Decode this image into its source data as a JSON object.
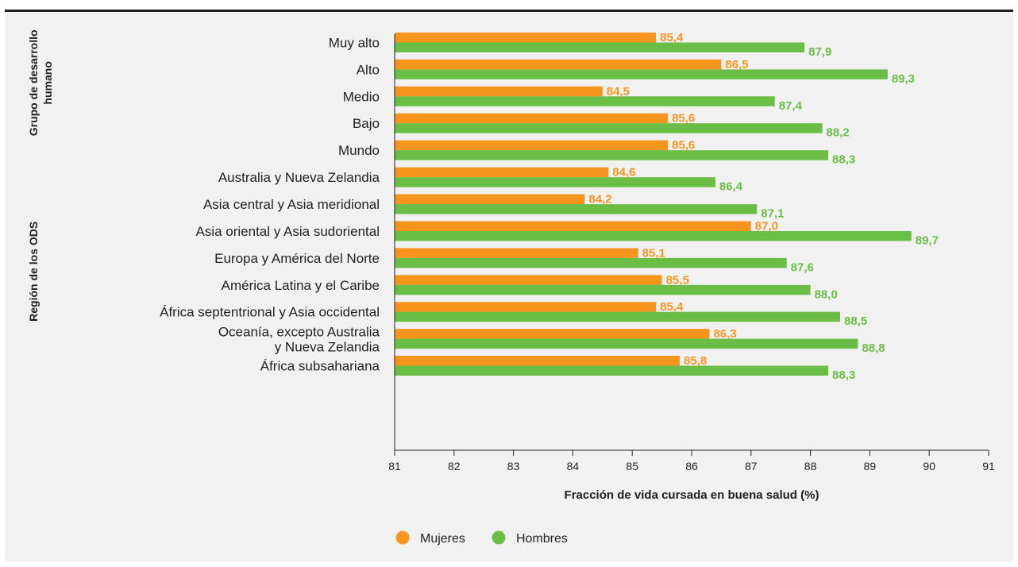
{
  "colors": {
    "mujeres": "#f7941d",
    "hombres": "#6abd45",
    "axis": "#231f20",
    "panel": "#f1f1f2"
  },
  "chart_data": {
    "type": "bar",
    "orientation": "horizontal",
    "xlabel": "Fracción de vida cursada en buena salud (%)",
    "xlim": [
      81,
      91
    ],
    "xticks": [
      "81",
      "82",
      "83",
      "84",
      "85",
      "86",
      "87",
      "88",
      "89",
      "90",
      "91"
    ],
    "grid": false,
    "legend_position": "bottom-center",
    "series_order": [
      "Mujeres",
      "Hombres"
    ],
    "groups": [
      {
        "label_lines": [
          "Grupo de desarrollo",
          "humano"
        ],
        "rows": [
          {
            "category": [
              "Muy alto"
            ],
            "mujeres": 85.4,
            "mujeres_label": "85,4",
            "hombres": 87.9,
            "hombres_label": "87,9"
          },
          {
            "category": [
              "Alto"
            ],
            "mujeres": 86.5,
            "mujeres_label": "86,5",
            "hombres": 89.3,
            "hombres_label": "89,3"
          },
          {
            "category": [
              "Medio"
            ],
            "mujeres": 84.5,
            "mujeres_label": "84,5",
            "hombres": 87.4,
            "hombres_label": "87,4"
          },
          {
            "category": [
              "Bajo"
            ],
            "mujeres": 85.6,
            "mujeres_label": "85,6",
            "hombres": 88.2,
            "hombres_label": "88,2"
          }
        ]
      },
      {
        "label_lines": [],
        "rows": [
          {
            "category": [
              "Mundo"
            ],
            "mujeres": 85.6,
            "mujeres_label": "85,6",
            "hombres": 88.3,
            "hombres_label": "88,3"
          }
        ]
      },
      {
        "label_lines": [
          "Región de los ODS"
        ],
        "rows": [
          {
            "category": [
              "Australia y Nueva Zelandia"
            ],
            "mujeres": 84.6,
            "mujeres_label": "84,6",
            "hombres": 86.4,
            "hombres_label": "86,4"
          },
          {
            "category": [
              "Asia central y Asia meridional"
            ],
            "mujeres": 84.2,
            "mujeres_label": "84,2",
            "hombres": 87.1,
            "hombres_label": "87,1"
          },
          {
            "category": [
              "Asia oriental y Asia sudoriental"
            ],
            "mujeres": 87.0,
            "mujeres_label": "87,0",
            "hombres": 89.7,
            "hombres_label": "89,7"
          },
          {
            "category": [
              "Europa y América del Norte"
            ],
            "mujeres": 85.1,
            "mujeres_label": "85,1",
            "hombres": 87.6,
            "hombres_label": "87,6"
          },
          {
            "category": [
              "América Latina y el Caribe"
            ],
            "mujeres": 85.5,
            "mujeres_label": "85,5",
            "hombres": 88.0,
            "hombres_label": "88,0"
          },
          {
            "category": [
              "África septentrional y Asia occidental"
            ],
            "mujeres": 85.4,
            "mujeres_label": "85,4",
            "hombres": 88.5,
            "hombres_label": "88,5"
          },
          {
            "category": [
              "Oceanía, excepto Australia",
              "y Nueva Zelandia"
            ],
            "mujeres": 86.3,
            "mujeres_label": "86,3",
            "hombres": 88.8,
            "hombres_label": "88,8"
          },
          {
            "category": [
              "África subsahariana"
            ],
            "mujeres": 85.8,
            "mujeres_label": "85,8",
            "hombres": 88.3,
            "hombres_label": "88,3"
          }
        ]
      }
    ]
  },
  "legend": {
    "items": [
      {
        "label": "Mujeres",
        "color": "#f7941d"
      },
      {
        "label": "Hombres",
        "color": "#6abd45"
      }
    ]
  }
}
